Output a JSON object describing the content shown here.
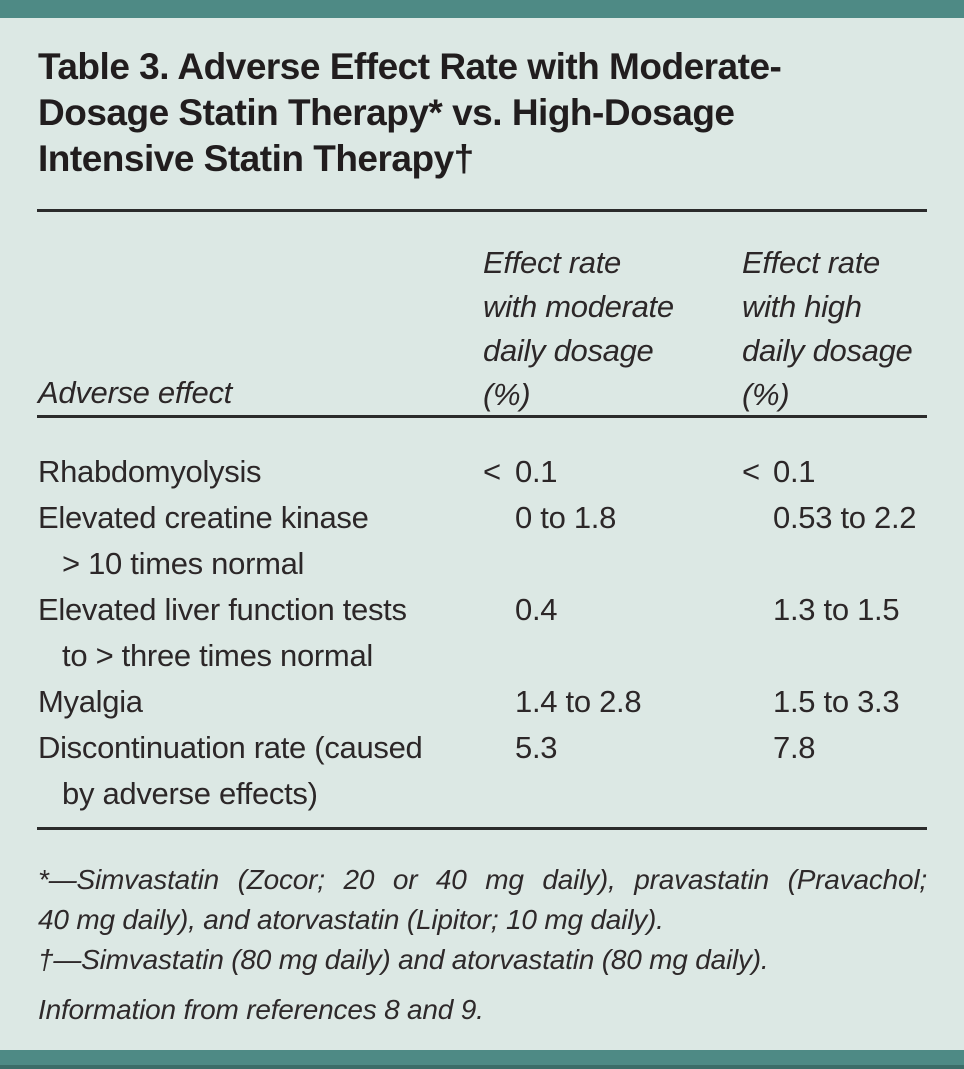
{
  "colors": {
    "accent_teal": "#4e8a85",
    "background": "#dce8e4",
    "text": "#2c2728",
    "rule": "#2b2b2b"
  },
  "title": "Table 3. Adverse Effect Rate with Moderate-\nDosage Statin Therapy* vs. High-Dosage\nIntensive Statin Therapy†",
  "table": {
    "col1_header": "Adverse effect",
    "col2_header": "Effect rate\nwith moderate\ndaily dosage\n(%)",
    "col3_header": "Effect rate\nwith high\ndaily dosage\n(%)",
    "rows": [
      {
        "label_line1": "Rhabdomyolysis",
        "label_line2": "",
        "moderate_prefix": "<",
        "moderate_value": "0.1",
        "high_prefix": "<",
        "high_value": "0.1"
      },
      {
        "label_line1": "Elevated creatine kinase",
        "label_line2": "> 10 times normal",
        "moderate_prefix": "",
        "moderate_value": "0 to 1.8",
        "high_prefix": "",
        "high_value": "0.53 to 2.2"
      },
      {
        "label_line1": "Elevated liver function tests",
        "label_line2": "to > three times normal",
        "moderate_prefix": "",
        "moderate_value": "0.4",
        "high_prefix": "",
        "high_value": "1.3 to 1.5"
      },
      {
        "label_line1": "Myalgia",
        "label_line2": "",
        "moderate_prefix": "",
        "moderate_value": "1.4 to 2.8",
        "high_prefix": "",
        "high_value": "1.5 to 3.3"
      },
      {
        "label_line1": "Discontinuation rate (caused",
        "label_line2": "by adverse effects)",
        "moderate_prefix": "",
        "moderate_value": "5.3",
        "high_prefix": "",
        "high_value": "7.8"
      }
    ]
  },
  "footnotes": {
    "footnote1_line1": "*—Simvastatin (Zocor; 20 or 40 mg daily), pravastatin (Pravachol;",
    "footnote1_line2": "40 mg daily), and atorvastatin (Lipitor; 10 mg daily).",
    "footnote2": "†—Simvastatin (80 mg daily) and atorvastatin (80 mg daily).",
    "source": "Information from references 8 and 9."
  }
}
